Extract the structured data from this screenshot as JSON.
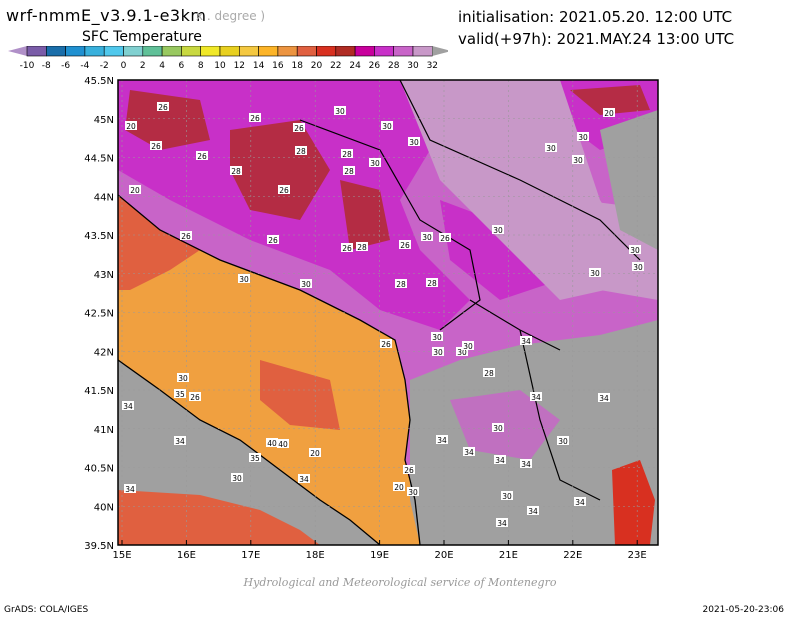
{
  "header": {
    "title": "wrf-nmmE_v3.9.1-e3km",
    "units": "x . degree )",
    "subtitle": "SFC Temperature",
    "initialisation": "initialisation: 2021.05.20. 12:00 UTC",
    "valid": "valid(+97h): 2021.MAY.24 13:00 UTC"
  },
  "colorbar": {
    "ticks": [
      "-10",
      "-8",
      "-6",
      "-4",
      "-2",
      "0",
      "2",
      "4",
      "6",
      "8",
      "10",
      "12",
      "14",
      "16",
      "18",
      "20",
      "22",
      "24",
      "26",
      "28",
      "30",
      "32"
    ],
    "under_color": "#b090c8",
    "over_color": "#a0a0a0",
    "colors": [
      "#7a5ca8",
      "#1a6eaa",
      "#2090d0",
      "#38b0dc",
      "#50c8ec",
      "#80d0d0",
      "#60c098",
      "#98c860",
      "#c8d840",
      "#f0e828",
      "#e8d020",
      "#f4c840",
      "#fcb428",
      "#ec9440",
      "#e06040",
      "#d83020",
      "#b02c24",
      "#c8009c",
      "#c830c8",
      "#c864c8",
      "#c898c8"
    ]
  },
  "map": {
    "lon_labels": [
      "15E",
      "16E",
      "17E",
      "18E",
      "19E",
      "20E",
      "21E",
      "22E",
      "23E"
    ],
    "lat_labels": [
      "45.5N",
      "45N",
      "44.5N",
      "44N",
      "43.5N",
      "43N",
      "42.5N",
      "42N",
      "41.5N",
      "41N",
      "40.5N",
      "40N",
      "39.5N"
    ],
    "contour_labels": [
      "26",
      "20",
      "26",
      "26",
      "28",
      "26",
      "26",
      "26",
      "28",
      "30",
      "30",
      "30",
      "30",
      "28",
      "28",
      "26",
      "26",
      "28",
      "26",
      "26",
      "28",
      "30",
      "30",
      "30",
      "30",
      "30",
      "30",
      "20",
      "30",
      "26",
      "20",
      "30",
      "30",
      "30",
      "28",
      "30",
      "34",
      "30",
      "30",
      "34",
      "34",
      "34",
      "30",
      "34",
      "34",
      "34",
      "34",
      "30",
      "30",
      "40",
      "40",
      "35",
      "20",
      "34",
      "34",
      "30",
      "30",
      "35",
      "34",
      "20",
      "26",
      "30",
      "34",
      "30",
      "34",
      "34",
      "28",
      "26",
      "26"
    ]
  },
  "footer": {
    "credit": "Hydrological and Meteorological service of Montenegro",
    "grads": "GrADS: COLA/IGES",
    "timestamp": "2021-05-20-23:06"
  }
}
